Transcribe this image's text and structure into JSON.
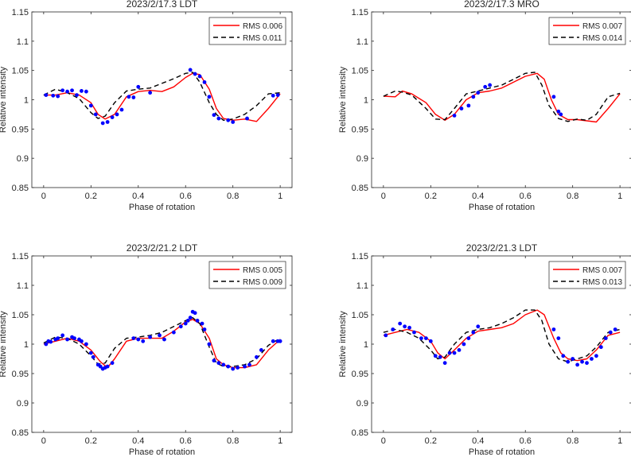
{
  "chart_data": [
    {
      "type": "line",
      "title": "2023/2/17.3   LDT",
      "xlabel": "Phase of rotation",
      "ylabel": "Relative intensity",
      "xlim": [
        -0.05,
        1.05
      ],
      "ylim": [
        0.85,
        1.15
      ],
      "xticks": [
        "0",
        "0.2",
        "0.4",
        "0.6",
        "0.8",
        "1"
      ],
      "yticks": [
        "0.85",
        "0.9",
        "0.95",
        "1",
        "1.05",
        "1.1",
        "1.15"
      ],
      "legend_position": "top-right",
      "series": [
        {
          "name": "RMS 0.006",
          "style": "solid",
          "color": "#ff0000",
          "x": [
            0.0,
            0.05,
            0.1,
            0.15,
            0.2,
            0.23,
            0.26,
            0.3,
            0.35,
            0.4,
            0.45,
            0.5,
            0.55,
            0.6,
            0.63,
            0.66,
            0.7,
            0.73,
            0.76,
            0.8,
            0.85,
            0.9,
            0.95,
            1.0
          ],
          "y": [
            1.008,
            1.008,
            1.012,
            1.008,
            0.995,
            0.975,
            0.967,
            0.975,
            1.005,
            1.014,
            1.016,
            1.014,
            1.022,
            1.038,
            1.045,
            1.043,
            1.018,
            0.985,
            0.968,
            0.965,
            0.967,
            0.963,
            0.985,
            1.01
          ]
        },
        {
          "name": "RMS 0.011",
          "style": "dashed",
          "color": "#000000",
          "x": [
            0.0,
            0.05,
            0.1,
            0.15,
            0.2,
            0.23,
            0.26,
            0.3,
            0.35,
            0.4,
            0.45,
            0.5,
            0.55,
            0.6,
            0.63,
            0.66,
            0.7,
            0.73,
            0.76,
            0.8,
            0.85,
            0.9,
            0.95,
            1.0
          ],
          "y": [
            1.008,
            1.018,
            1.012,
            1.002,
            0.978,
            0.968,
            0.972,
            0.995,
            1.015,
            1.018,
            1.02,
            1.028,
            1.036,
            1.045,
            1.047,
            1.03,
            0.995,
            0.975,
            0.965,
            0.967,
            0.975,
            0.99,
            1.01,
            1.012
          ]
        },
        {
          "name": "observed",
          "style": "dots",
          "color": "#0000ff",
          "x": [
            0.01,
            0.04,
            0.06,
            0.08,
            0.1,
            0.12,
            0.14,
            0.16,
            0.18,
            0.2,
            0.22,
            0.25,
            0.27,
            0.29,
            0.31,
            0.33,
            0.36,
            0.38,
            0.4,
            0.45,
            0.62,
            0.64,
            0.66,
            0.68,
            0.7,
            0.72,
            0.74,
            0.78,
            0.8,
            0.86,
            0.97,
            0.99
          ],
          "y": [
            1.008,
            1.007,
            1.006,
            1.016,
            1.014,
            1.016,
            1.008,
            1.015,
            1.014,
            0.99,
            0.975,
            0.96,
            0.962,
            0.97,
            0.975,
            0.983,
            1.005,
            1.004,
            1.022,
            1.012,
            1.051,
            1.044,
            1.04,
            1.03,
            1.005,
            0.974,
            0.968,
            0.965,
            0.962,
            0.968,
            1.007,
            1.008
          ]
        }
      ]
    },
    {
      "type": "line",
      "title": "2023/2/17.3   MRO",
      "xlabel": "Phase of rotation",
      "ylabel": "Relative intensity",
      "xlim": [
        -0.05,
        1.05
      ],
      "ylim": [
        0.85,
        1.15
      ],
      "xticks": [
        "0",
        "0.2",
        "0.4",
        "0.6",
        "0.8",
        "1"
      ],
      "yticks": [
        "0.85",
        "0.9",
        "0.95",
        "1",
        "1.05",
        "1.1",
        "1.15"
      ],
      "legend_position": "top-right",
      "series": [
        {
          "name": "RMS 0.007",
          "style": "solid",
          "color": "#ff0000",
          "x": [
            0.0,
            0.05,
            0.08,
            0.12,
            0.18,
            0.22,
            0.26,
            0.3,
            0.35,
            0.4,
            0.45,
            0.5,
            0.55,
            0.6,
            0.65,
            0.68,
            0.71,
            0.74,
            0.78,
            0.82,
            0.86,
            0.9,
            0.95,
            1.0
          ],
          "y": [
            1.006,
            1.005,
            1.015,
            1.01,
            0.995,
            0.975,
            0.965,
            0.975,
            1.0,
            1.012,
            1.015,
            1.02,
            1.03,
            1.04,
            1.045,
            1.035,
            1.0,
            0.975,
            0.966,
            0.966,
            0.964,
            0.962,
            0.985,
            1.01
          ]
        },
        {
          "name": "RMS 0.014",
          "style": "dashed",
          "color": "#000000",
          "x": [
            0.0,
            0.05,
            0.08,
            0.12,
            0.18,
            0.22,
            0.26,
            0.3,
            0.35,
            0.4,
            0.45,
            0.5,
            0.55,
            0.6,
            0.64,
            0.67,
            0.7,
            0.74,
            0.78,
            0.82,
            0.86,
            0.9,
            0.95,
            1.0
          ],
          "y": [
            1.006,
            1.015,
            1.013,
            1.008,
            0.985,
            0.967,
            0.966,
            0.985,
            1.01,
            1.015,
            1.02,
            1.025,
            1.035,
            1.045,
            1.047,
            1.025,
            0.99,
            0.968,
            0.963,
            0.967,
            0.965,
            0.975,
            1.005,
            1.011
          ]
        },
        {
          "name": "observed",
          "style": "dots",
          "color": "#0000ff",
          "x": [
            0.3,
            0.33,
            0.36,
            0.38,
            0.4,
            0.43,
            0.45,
            0.72,
            0.74,
            0.75
          ],
          "y": [
            0.973,
            0.985,
            0.99,
            1.005,
            1.012,
            1.022,
            1.025,
            1.005,
            0.98,
            0.975
          ]
        }
      ]
    },
    {
      "type": "line",
      "title": "2023/2/21.2   LDT",
      "xlabel": "Phase of rotation",
      "ylabel": "Relative intensity",
      "xlim": [
        -0.05,
        1.05
      ],
      "ylim": [
        0.85,
        1.15
      ],
      "xticks": [
        "0",
        "0.2",
        "0.4",
        "0.6",
        "0.8",
        "1"
      ],
      "yticks": [
        "0.85",
        "0.9",
        "0.95",
        "1",
        "1.05",
        "1.1",
        "1.15"
      ],
      "legend_position": "top-right",
      "series": [
        {
          "name": "RMS 0.005",
          "style": "solid",
          "color": "#ff0000",
          "x": [
            0.0,
            0.05,
            0.1,
            0.15,
            0.2,
            0.24,
            0.27,
            0.3,
            0.35,
            0.4,
            0.45,
            0.5,
            0.55,
            0.6,
            0.63,
            0.66,
            0.7,
            0.73,
            0.76,
            0.8,
            0.85,
            0.9,
            0.95,
            1.0
          ],
          "y": [
            1.0,
            1.005,
            1.01,
            1.005,
            0.99,
            0.97,
            0.96,
            0.975,
            1.005,
            1.01,
            1.01,
            1.01,
            1.022,
            1.038,
            1.042,
            1.035,
            1.01,
            0.975,
            0.965,
            0.96,
            0.96,
            0.965,
            0.99,
            1.008
          ]
        },
        {
          "name": "RMS 0.009",
          "style": "dashed",
          "color": "#000000",
          "x": [
            0.0,
            0.05,
            0.1,
            0.15,
            0.2,
            0.23,
            0.26,
            0.3,
            0.35,
            0.4,
            0.45,
            0.5,
            0.55,
            0.6,
            0.63,
            0.66,
            0.7,
            0.73,
            0.76,
            0.8,
            0.85,
            0.9,
            0.95,
            1.0
          ],
          "y": [
            1.002,
            1.012,
            1.01,
            1.0,
            0.98,
            0.966,
            0.968,
            0.993,
            1.01,
            1.012,
            1.015,
            1.02,
            1.03,
            1.04,
            1.045,
            1.035,
            0.995,
            0.968,
            0.962,
            0.962,
            0.965,
            0.975,
            0.998,
            1.01
          ]
        },
        {
          "name": "observed",
          "style": "dots",
          "color": "#0000ff",
          "x": [
            0.01,
            0.02,
            0.03,
            0.05,
            0.06,
            0.08,
            0.1,
            0.12,
            0.13,
            0.15,
            0.16,
            0.18,
            0.2,
            0.21,
            0.23,
            0.24,
            0.25,
            0.26,
            0.27,
            0.29,
            0.38,
            0.4,
            0.42,
            0.45,
            0.49,
            0.51,
            0.55,
            0.58,
            0.6,
            0.61,
            0.62,
            0.63,
            0.64,
            0.65,
            0.67,
            0.68,
            0.7,
            0.72,
            0.74,
            0.76,
            0.78,
            0.8,
            0.82,
            0.85,
            0.87,
            0.9,
            0.92,
            0.97,
            0.99,
            1.0
          ],
          "y": [
            1.0,
            1.005,
            1.004,
            1.008,
            1.01,
            1.015,
            1.008,
            1.012,
            1.01,
            1.008,
            1.005,
            1.0,
            0.985,
            0.978,
            0.965,
            0.962,
            0.958,
            0.96,
            0.962,
            0.968,
            1.01,
            1.008,
            1.005,
            1.012,
            1.015,
            1.008,
            1.02,
            1.03,
            1.035,
            1.04,
            1.045,
            1.055,
            1.053,
            1.04,
            1.035,
            1.025,
            1.0,
            0.972,
            0.968,
            0.965,
            0.962,
            0.958,
            0.96,
            0.962,
            0.965,
            0.978,
            0.99,
            1.005,
            1.005,
            1.005
          ]
        }
      ]
    },
    {
      "type": "line",
      "title": "2023/2/21.3   LDT",
      "xlabel": "Phase of rotation",
      "ylabel": "Relative intensity",
      "xlim": [
        -0.05,
        1.05
      ],
      "ylim": [
        0.85,
        1.15
      ],
      "xticks": [
        "0",
        "0.2",
        "0.4",
        "0.6",
        "0.8",
        "1"
      ],
      "yticks": [
        "0.85",
        "0.9",
        "0.95",
        "1",
        "1.05",
        "1.1",
        "1.15"
      ],
      "legend_position": "top-right",
      "series": [
        {
          "name": "RMS 0.007",
          "style": "solid",
          "color": "#ff0000",
          "x": [
            0.0,
            0.05,
            0.1,
            0.15,
            0.2,
            0.23,
            0.26,
            0.3,
            0.35,
            0.4,
            0.45,
            0.5,
            0.55,
            0.6,
            0.65,
            0.68,
            0.72,
            0.75,
            0.78,
            0.82,
            0.86,
            0.9,
            0.95,
            1.0
          ],
          "y": [
            1.015,
            1.02,
            1.025,
            1.02,
            1.005,
            0.985,
            0.975,
            0.99,
            1.01,
            1.022,
            1.025,
            1.028,
            1.035,
            1.05,
            1.058,
            1.05,
            1.01,
            0.985,
            0.975,
            0.972,
            0.975,
            0.99,
            1.015,
            1.02
          ]
        },
        {
          "name": "RMS 0.013",
          "style": "dashed",
          "color": "#000000",
          "x": [
            0.0,
            0.05,
            0.1,
            0.15,
            0.2,
            0.23,
            0.26,
            0.3,
            0.35,
            0.4,
            0.45,
            0.5,
            0.55,
            0.6,
            0.64,
            0.67,
            0.7,
            0.74,
            0.78,
            0.82,
            0.86,
            0.9,
            0.95,
            1.0
          ],
          "y": [
            1.02,
            1.025,
            1.02,
            1.01,
            0.99,
            0.975,
            0.978,
            1.0,
            1.02,
            1.025,
            1.028,
            1.035,
            1.045,
            1.058,
            1.058,
            1.04,
            1.0,
            0.975,
            0.97,
            0.975,
            0.98,
            0.995,
            1.02,
            1.025
          ]
        },
        {
          "name": "observed",
          "style": "dots",
          "color": "#0000ff",
          "x": [
            0.01,
            0.04,
            0.07,
            0.09,
            0.11,
            0.13,
            0.16,
            0.18,
            0.2,
            0.22,
            0.24,
            0.26,
            0.28,
            0.3,
            0.32,
            0.34,
            0.36,
            0.38,
            0.4,
            0.72,
            0.74,
            0.76,
            0.78,
            0.8,
            0.82,
            0.84,
            0.86,
            0.88,
            0.9,
            0.92,
            0.94,
            0.96,
            0.98
          ],
          "y": [
            1.015,
            1.025,
            1.035,
            1.03,
            1.028,
            1.02,
            1.01,
            1.01,
            1.005,
            0.98,
            0.978,
            0.968,
            0.985,
            0.985,
            0.99,
            1.0,
            1.01,
            1.02,
            1.03,
            1.025,
            1.01,
            0.98,
            0.97,
            0.975,
            0.965,
            0.97,
            0.968,
            0.975,
            0.98,
            0.995,
            1.01,
            1.02,
            1.025
          ]
        }
      ]
    }
  ]
}
